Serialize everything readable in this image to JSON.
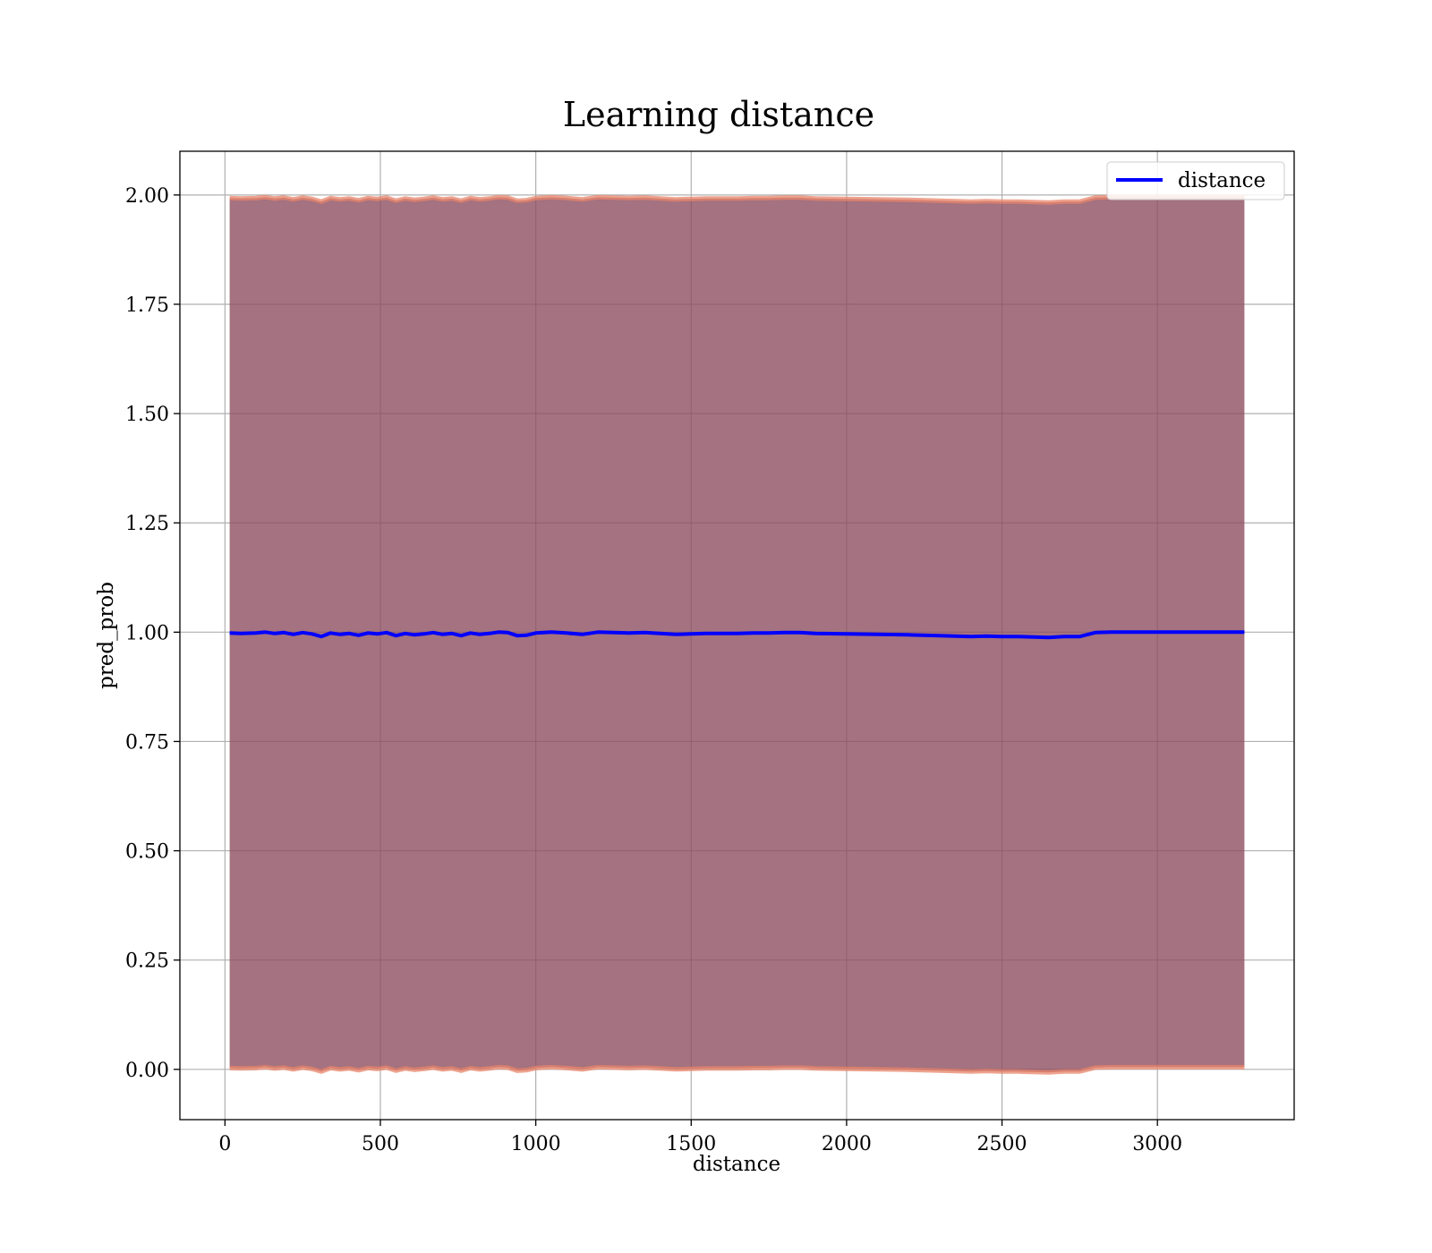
{
  "chart_data": {
    "type": "line",
    "title": "Learning distance",
    "xlabel": "distance",
    "ylabel": "pred_prob",
    "xlim": [
      -145,
      3440
    ],
    "ylim": [
      -0.115,
      2.1
    ],
    "xticks": [
      0,
      500,
      1000,
      1500,
      2000,
      2500,
      3000
    ],
    "xtick_labels": [
      "0",
      "500",
      "1000",
      "1500",
      "2000",
      "2500",
      "3000"
    ],
    "yticks": [
      0.0,
      0.25,
      0.5,
      0.75,
      1.0,
      1.25,
      1.5,
      1.75,
      2.0
    ],
    "ytick_labels": [
      "0.00",
      "0.25",
      "0.50",
      "0.75",
      "1.00",
      "1.25",
      "1.50",
      "1.75",
      "2.00"
    ],
    "grid": true,
    "legend_position": "top-right",
    "colors": {
      "line": "#0000ff",
      "band_fill": "#8b4a5c",
      "band_edge": "#e8846a"
    },
    "series": [
      {
        "name": "distance",
        "x": [
          15,
          50,
          100,
          130,
          160,
          190,
          220,
          250,
          280,
          310,
          340,
          370,
          400,
          430,
          460,
          490,
          520,
          550,
          580,
          610,
          640,
          670,
          700,
          730,
          760,
          790,
          820,
          850,
          880,
          910,
          940,
          970,
          1000,
          1050,
          1100,
          1150,
          1200,
          1250,
          1300,
          1350,
          1400,
          1450,
          1500,
          1550,
          1600,
          1650,
          1700,
          1750,
          1800,
          1850,
          1900,
          2000,
          2100,
          2200,
          2300,
          2400,
          2450,
          2500,
          2550,
          2600,
          2650,
          2700,
          2750,
          2800,
          2850,
          2900,
          3000,
          3100,
          3200,
          3280
        ],
        "y": [
          0.998,
          0.997,
          0.998,
          1.0,
          0.997,
          0.999,
          0.995,
          0.999,
          0.996,
          0.99,
          0.998,
          0.995,
          0.997,
          0.993,
          0.998,
          0.996,
          0.999,
          0.992,
          0.997,
          0.994,
          0.996,
          0.999,
          0.995,
          0.997,
          0.992,
          0.998,
          0.995,
          0.997,
          1.0,
          0.999,
          0.992,
          0.993,
          0.998,
          1.0,
          0.998,
          0.995,
          1.0,
          0.999,
          0.998,
          0.999,
          0.997,
          0.995,
          0.996,
          0.997,
          0.997,
          0.997,
          0.998,
          0.998,
          0.999,
          0.999,
          0.997,
          0.996,
          0.995,
          0.994,
          0.992,
          0.99,
          0.991,
          0.99,
          0.99,
          0.989,
          0.988,
          0.99,
          0.99,
          0.999,
          1.0,
          1.0,
          1.0,
          1.0,
          1.0,
          1.0
        ]
      }
    ],
    "band": {
      "upper_offset": 0.995,
      "lower_offset": 0.995
    }
  }
}
